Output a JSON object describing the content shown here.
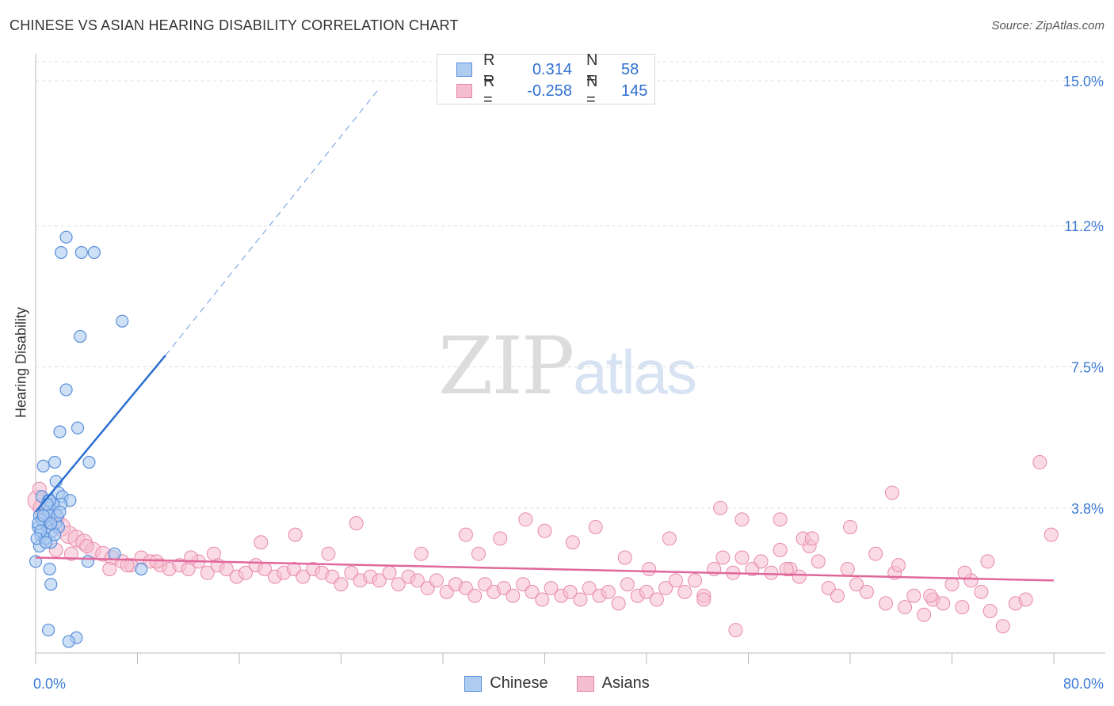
{
  "header": {
    "title": "CHINESE VS ASIAN HEARING DISABILITY CORRELATION CHART",
    "source": "Source: ZipAtlas.com"
  },
  "watermark": {
    "zip": "ZIP",
    "atlas": "atlas"
  },
  "colors": {
    "chinese_fill": "#aecbf0",
    "chinese_stroke": "#5a8fdb",
    "chinese_line": "#2b6fd1",
    "asians_fill": "#f5bdd0",
    "asians_stroke": "#e889aa",
    "asians_line": "#e0689a",
    "grid": "#dddddd",
    "tick_label": "#3d7bd6"
  },
  "legend": {
    "chinese": {
      "r_label": "R =",
      "r_value": "0.314",
      "n_label": "N =",
      "n_value": "58"
    },
    "asians": {
      "r_label": "R =",
      "r_value": "-0.258",
      "n_label": "N =",
      "n_value": "145"
    }
  },
  "bottom_legend": {
    "chinese": "Chinese",
    "asians": "Asians"
  },
  "chart_data": {
    "type": "scatter",
    "title": "CHINESE VS ASIAN HEARING DISABILITY CORRELATION CHART",
    "xlabel": "",
    "ylabel": "Hearing Disability",
    "xlim": [
      0,
      80
    ],
    "ylim": [
      0,
      15.5
    ],
    "x_tick_labels": [
      "0.0%",
      "80.0%"
    ],
    "y_ticks": [
      3.8,
      7.5,
      11.2,
      15.0
    ],
    "y_tick_labels": [
      "3.8%",
      "7.5%",
      "11.2%",
      "15.0%"
    ],
    "grid": true,
    "legend_position": "top-center",
    "series": [
      {
        "name": "Chinese",
        "R": 0.314,
        "N": 58,
        "trend": {
          "x0": 0,
          "y0": 3.7,
          "x1": 10.2,
          "y1": 7.8,
          "dashed_to": [
            27,
            14.8
          ]
        },
        "points": [
          [
            2.4,
            10.9
          ],
          [
            2.0,
            10.5
          ],
          [
            3.6,
            10.5
          ],
          [
            4.6,
            10.5
          ],
          [
            6.8,
            8.7
          ],
          [
            3.5,
            8.3
          ],
          [
            2.4,
            6.9
          ],
          [
            3.3,
            5.9
          ],
          [
            1.9,
            5.8
          ],
          [
            4.2,
            5.0
          ],
          [
            0.6,
            4.9
          ],
          [
            1.5,
            5.0
          ],
          [
            1.6,
            4.5
          ],
          [
            1.8,
            4.2
          ],
          [
            2.1,
            4.1
          ],
          [
            2.7,
            4.0
          ],
          [
            0.5,
            4.1
          ],
          [
            1.0,
            4.0
          ],
          [
            1.3,
            3.9
          ],
          [
            0.8,
            3.8
          ],
          [
            1.5,
            3.7
          ],
          [
            2.0,
            3.9
          ],
          [
            0.3,
            3.6
          ],
          [
            0.6,
            3.5
          ],
          [
            1.1,
            3.6
          ],
          [
            1.6,
            3.4
          ],
          [
            0.2,
            3.3
          ],
          [
            0.9,
            3.3
          ],
          [
            1.3,
            3.2
          ],
          [
            1.8,
            3.3
          ],
          [
            0.4,
            3.1
          ],
          [
            0.7,
            3.0
          ],
          [
            1.2,
            2.9
          ],
          [
            0.3,
            2.8
          ],
          [
            0.8,
            3.0
          ],
          [
            1.5,
            3.1
          ],
          [
            0.5,
            3.5
          ],
          [
            1.0,
            3.7
          ],
          [
            1.4,
            3.9
          ],
          [
            0.2,
            3.4
          ],
          [
            1.7,
            3.6
          ],
          [
            1.1,
            4.0
          ],
          [
            0.9,
            3.9
          ],
          [
            0.6,
            3.6
          ],
          [
            0.4,
            3.2
          ],
          [
            1.2,
            3.4
          ],
          [
            0.1,
            3.0
          ],
          [
            0.0,
            2.4
          ],
          [
            6.2,
            2.6
          ],
          [
            4.1,
            2.4
          ],
          [
            8.3,
            2.2
          ],
          [
            1.1,
            2.2
          ],
          [
            1.2,
            1.8
          ],
          [
            1.0,
            0.6
          ],
          [
            3.2,
            0.4
          ],
          [
            2.6,
            0.3
          ],
          [
            0.8,
            2.9
          ],
          [
            1.9,
            3.7
          ]
        ]
      },
      {
        "name": "Asians",
        "R": -0.258,
        "N": 145,
        "trend": {
          "x0": 0,
          "y0": 2.5,
          "x1": 80,
          "y1": 1.9
        },
        "points": [
          [
            0.2,
            4.0
          ],
          [
            0.6,
            3.8
          ],
          [
            1.0,
            3.6
          ],
          [
            1.5,
            3.5
          ],
          [
            2.0,
            3.3
          ],
          [
            2.6,
            3.1
          ],
          [
            3.2,
            3.0
          ],
          [
            3.8,
            2.9
          ],
          [
            4.5,
            2.7
          ],
          [
            5.3,
            2.6
          ],
          [
            6.0,
            2.5
          ],
          [
            6.8,
            2.4
          ],
          [
            7.5,
            2.3
          ],
          [
            8.3,
            2.5
          ],
          [
            9.0,
            2.4
          ],
          [
            9.8,
            2.3
          ],
          [
            10.5,
            2.2
          ],
          [
            11.3,
            2.3
          ],
          [
            12.0,
            2.2
          ],
          [
            12.8,
            2.4
          ],
          [
            13.5,
            2.1
          ],
          [
            14.3,
            2.3
          ],
          [
            15.0,
            2.2
          ],
          [
            15.8,
            2.0
          ],
          [
            16.5,
            2.1
          ],
          [
            17.3,
            2.3
          ],
          [
            18.0,
            2.2
          ],
          [
            18.8,
            2.0
          ],
          [
            19.5,
            2.1
          ],
          [
            20.3,
            2.2
          ],
          [
            21.0,
            2.0
          ],
          [
            21.8,
            2.2
          ],
          [
            22.5,
            2.1
          ],
          [
            23.3,
            2.0
          ],
          [
            24.0,
            1.8
          ],
          [
            24.8,
            2.1
          ],
          [
            25.5,
            1.9
          ],
          [
            26.3,
            2.0
          ],
          [
            27.0,
            1.9
          ],
          [
            27.8,
            2.1
          ],
          [
            28.5,
            1.8
          ],
          [
            29.3,
            2.0
          ],
          [
            30.0,
            1.9
          ],
          [
            30.8,
            1.7
          ],
          [
            31.5,
            1.9
          ],
          [
            32.3,
            1.6
          ],
          [
            33.0,
            1.8
          ],
          [
            33.8,
            1.7
          ],
          [
            34.5,
            1.5
          ],
          [
            35.3,
            1.8
          ],
          [
            36.0,
            1.6
          ],
          [
            36.8,
            1.7
          ],
          [
            37.5,
            1.5
          ],
          [
            38.3,
            1.8
          ],
          [
            39.0,
            1.6
          ],
          [
            39.8,
            1.4
          ],
          [
            40.5,
            1.7
          ],
          [
            41.3,
            1.5
          ],
          [
            42.0,
            1.6
          ],
          [
            42.8,
            1.4
          ],
          [
            43.5,
            1.7
          ],
          [
            44.3,
            1.5
          ],
          [
            45.0,
            1.6
          ],
          [
            45.8,
            1.3
          ],
          [
            46.5,
            1.8
          ],
          [
            47.3,
            1.5
          ],
          [
            48.0,
            1.6
          ],
          [
            48.8,
            1.4
          ],
          [
            49.5,
            1.7
          ],
          [
            50.3,
            1.9
          ],
          [
            51.0,
            1.6
          ],
          [
            51.8,
            1.9
          ],
          [
            52.5,
            1.5
          ],
          [
            53.3,
            2.2
          ],
          [
            54.0,
            2.5
          ],
          [
            54.8,
            2.1
          ],
          [
            55.5,
            2.5
          ],
          [
            56.3,
            2.2
          ],
          [
            57.0,
            2.4
          ],
          [
            57.8,
            2.1
          ],
          [
            58.5,
            2.7
          ],
          [
            59.3,
            2.2
          ],
          [
            60.0,
            2.0
          ],
          [
            60.8,
            2.8
          ],
          [
            61.5,
            2.4
          ],
          [
            62.3,
            1.7
          ],
          [
            63.0,
            1.5
          ],
          [
            63.8,
            2.2
          ],
          [
            64.5,
            1.8
          ],
          [
            65.3,
            1.6
          ],
          [
            66.0,
            2.6
          ],
          [
            66.8,
            1.3
          ],
          [
            67.5,
            2.1
          ],
          [
            68.3,
            1.2
          ],
          [
            69.0,
            1.5
          ],
          [
            69.8,
            1.0
          ],
          [
            70.5,
            1.4
          ],
          [
            71.3,
            1.3
          ],
          [
            72.0,
            1.8
          ],
          [
            72.8,
            1.2
          ],
          [
            73.5,
            1.9
          ],
          [
            74.3,
            1.6
          ],
          [
            75.0,
            1.1
          ],
          [
            76.0,
            0.7
          ],
          [
            77.0,
            1.3
          ],
          [
            77.8,
            1.4
          ],
          [
            53.8,
            3.8
          ],
          [
            55.5,
            3.5
          ],
          [
            58.5,
            3.5
          ],
          [
            60.3,
            3.0
          ],
          [
            61.0,
            3.0
          ],
          [
            64.0,
            3.3
          ],
          [
            67.8,
            2.3
          ],
          [
            70.3,
            1.5
          ],
          [
            73.0,
            2.1
          ],
          [
            74.8,
            2.4
          ],
          [
            79.8,
            3.1
          ],
          [
            78.9,
            5.0
          ],
          [
            67.3,
            4.2
          ],
          [
            55.0,
            0.6
          ],
          [
            52.5,
            1.4
          ],
          [
            59.0,
            2.2
          ],
          [
            49.8,
            3.0
          ],
          [
            48.2,
            2.2
          ],
          [
            46.3,
            2.5
          ],
          [
            44.0,
            3.3
          ],
          [
            42.2,
            2.9
          ],
          [
            40.0,
            3.2
          ],
          [
            38.5,
            3.5
          ],
          [
            36.5,
            3.0
          ],
          [
            34.8,
            2.6
          ],
          [
            33.8,
            3.1
          ],
          [
            30.3,
            2.6
          ],
          [
            25.2,
            3.4
          ],
          [
            23.0,
            2.6
          ],
          [
            20.4,
            3.1
          ],
          [
            17.7,
            2.9
          ],
          [
            14.0,
            2.6
          ],
          [
            12.2,
            2.5
          ],
          [
            9.5,
            2.4
          ],
          [
            7.2,
            2.3
          ],
          [
            5.8,
            2.2
          ],
          [
            4.0,
            2.8
          ],
          [
            2.8,
            2.6
          ],
          [
            1.6,
            2.7
          ],
          [
            0.8,
            3.4
          ],
          [
            0.3,
            4.3
          ]
        ]
      }
    ]
  }
}
